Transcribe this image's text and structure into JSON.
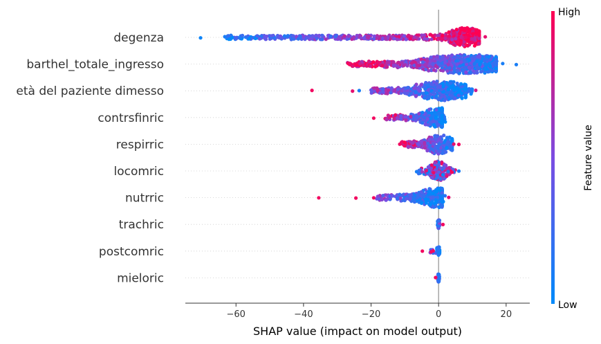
{
  "chart_data": {
    "type": "scatter",
    "subtype": "shap-beeswarm",
    "xlabel": "SHAP value (impact on model output)",
    "xlim": [
      -75,
      27
    ],
    "xticks": [
      -60,
      -40,
      -20,
      0,
      20
    ],
    "xtick_labels": [
      "−60",
      "−40",
      "−20",
      "0",
      "20"
    ],
    "features": [
      {
        "name": "degenza",
        "min": -70.5,
        "max": 14,
        "core": [
          -3,
          12
        ],
        "center": 8,
        "dense": [
          -63,
          10
        ],
        "high_side": "right",
        "sparse": [
          {
            "x": -70.5,
            "v": 0.05
          },
          {
            "x": -63.3,
            "v": 0.1
          },
          {
            "x": 13.8,
            "v": 0.9
          }
        ]
      },
      {
        "name": "barthel_totale_ingresso",
        "min": -28,
        "max": 23,
        "core": [
          -22,
          17
        ],
        "center": 8,
        "dense": [
          -27,
          18
        ],
        "high_side": "left",
        "sparse": [
          {
            "x": 23,
            "v": 0.1
          },
          {
            "x": 19,
            "v": 0.1
          }
        ]
      },
      {
        "name": "età del paziente dimesso",
        "min": -38,
        "max": 11,
        "core": [
          -18,
          8
        ],
        "center": 1,
        "dense": [
          -20,
          10
        ],
        "high_side": "left",
        "sparse": [
          {
            "x": -37.5,
            "v": 0.95
          },
          {
            "x": -25.5,
            "v": 0.9
          },
          {
            "x": -23.5,
            "v": 0.1
          },
          {
            "x": 11,
            "v": 0.8
          },
          {
            "x": 9,
            "v": 0.2
          }
        ]
      },
      {
        "name": "contrsfinric",
        "min": -19,
        "max": 2,
        "core": [
          -15,
          1
        ],
        "center": 0.3,
        "dense": [
          -16,
          2
        ],
        "high_side": "left",
        "sparse": [
          {
            "x": -19.2,
            "v": 0.95
          }
        ]
      },
      {
        "name": "respirric",
        "min": -12,
        "max": 6,
        "core": [
          -9,
          4
        ],
        "center": 0.2,
        "dense": [
          -11,
          3
        ],
        "high_side": "left",
        "sparse": [
          {
            "x": -11.5,
            "v": 0.95
          },
          {
            "x": 6,
            "v": 0.95
          },
          {
            "x": 4.5,
            "v": 0.9
          }
        ]
      },
      {
        "name": "locomric",
        "min": -6.5,
        "max": 6,
        "core": [
          -4,
          4
        ],
        "center": 0,
        "dense": [
          -6,
          5
        ],
        "high_side": "mixed",
        "sparse": [
          {
            "x": -6.5,
            "v": 0.1
          },
          {
            "x": 6,
            "v": 0.1
          }
        ]
      },
      {
        "name": "nutrric",
        "min": -36,
        "max": 3,
        "core": [
          -19,
          1
        ],
        "center": 0.2,
        "dense": [
          -19,
          2
        ],
        "high_side": "left",
        "sparse": [
          {
            "x": -35.5,
            "v": 0.95
          },
          {
            "x": -24.5,
            "v": 0.95
          },
          {
            "x": -19.2,
            "v": 0.95
          },
          {
            "x": 3,
            "v": 0.9
          }
        ]
      },
      {
        "name": "trachric",
        "min": -0.5,
        "max": 1.5,
        "core": [
          -0.3,
          0.3
        ],
        "center": 0,
        "dense": [
          -0.3,
          0.3
        ],
        "high_side": "right",
        "sparse": [
          {
            "x": 1.3,
            "v": 0.95
          }
        ]
      },
      {
        "name": "postcomric",
        "min": -5,
        "max": 0.5,
        "core": [
          -0.5,
          0.3
        ],
        "center": 0,
        "dense": [
          -2.5,
          0.3
        ],
        "high_side": "left",
        "sparse": [
          {
            "x": -4.8,
            "v": 0.95
          },
          {
            "x": -2.2,
            "v": 0.95
          },
          {
            "x": -1.6,
            "v": 0.95
          }
        ]
      },
      {
        "name": "mieloric",
        "min": -1,
        "max": 0.3,
        "core": [
          -0.3,
          0.2
        ],
        "center": 0,
        "dense": [
          -0.3,
          0.2
        ],
        "high_side": "left",
        "sparse": [
          {
            "x": -0.9,
            "v": 0.95
          }
        ]
      }
    ],
    "colorbar": {
      "title": "Feature value",
      "high_label": "High",
      "low_label": "Low",
      "low_color": "#008afb",
      "mid_color": "#7b4ce2",
      "high_color": "#ff0052"
    },
    "grid": false,
    "legend": "colorbar-right"
  }
}
